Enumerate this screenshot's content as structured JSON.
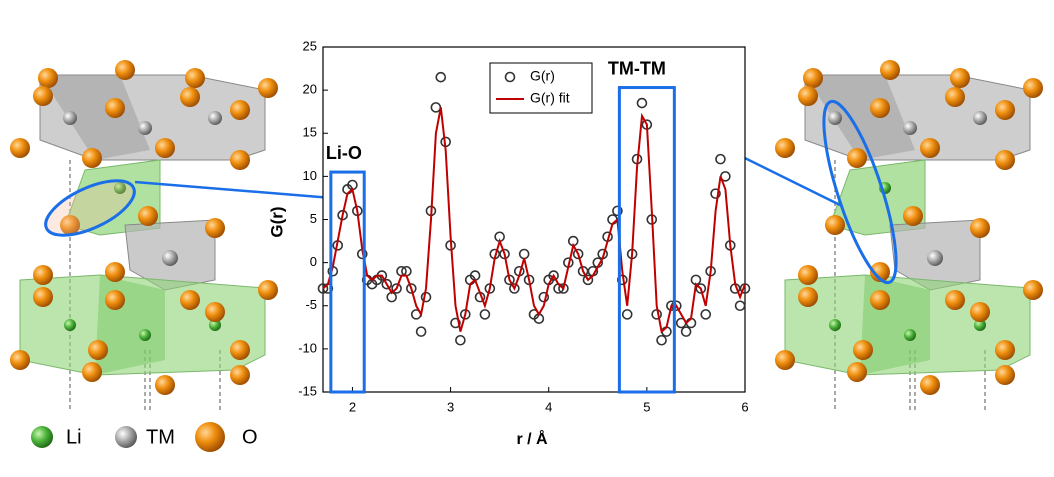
{
  "chart_data": {
    "type": "scatter",
    "xlabel": "r / Å",
    "ylabel": "G(r)",
    "xlim": [
      1.7,
      6.0
    ],
    "xticks": [
      2,
      3,
      4,
      5,
      6
    ],
    "ylim": [
      -15,
      25
    ],
    "yticks": [
      -15,
      -10,
      -5,
      0,
      5,
      10,
      15,
      20,
      25
    ],
    "x": [
      1.7,
      1.75,
      1.8,
      1.85,
      1.9,
      1.95,
      2.0,
      2.05,
      2.1,
      2.15,
      2.2,
      2.25,
      2.3,
      2.35,
      2.4,
      2.45,
      2.5,
      2.55,
      2.6,
      2.65,
      2.7,
      2.75,
      2.8,
      2.85,
      2.9,
      2.95,
      3.0,
      3.05,
      3.1,
      3.15,
      3.2,
      3.25,
      3.3,
      3.35,
      3.4,
      3.45,
      3.5,
      3.55,
      3.6,
      3.65,
      3.7,
      3.75,
      3.8,
      3.85,
      3.9,
      3.95,
      4.0,
      4.05,
      4.1,
      4.15,
      4.2,
      4.25,
      4.3,
      4.35,
      4.4,
      4.45,
      4.5,
      4.55,
      4.6,
      4.65,
      4.7,
      4.75,
      4.8,
      4.85,
      4.9,
      4.95,
      5.0,
      5.05,
      5.1,
      5.15,
      5.2,
      5.25,
      5.3,
      5.35,
      5.4,
      5.45,
      5.5,
      5.55,
      5.6,
      5.65,
      5.7,
      5.75,
      5.8,
      5.85,
      5.9,
      5.95,
      6.0
    ],
    "series": [
      {
        "name": "G(r)",
        "color": "#333333",
        "values": [
          -3,
          -3,
          -1,
          2,
          5.5,
          8.5,
          9,
          6,
          1,
          -2,
          -2.5,
          -2,
          -1.5,
          -2.5,
          -4,
          -3,
          -1,
          -1,
          -3,
          -6,
          -8,
          -4,
          6,
          18,
          21.5,
          14,
          2,
          -7,
          -9,
          -6,
          -2,
          -1.5,
          -4,
          -6,
          -3,
          1,
          3,
          1,
          -2,
          -3,
          -1,
          1,
          -2,
          -6,
          -6.5,
          -4,
          -2,
          -1.5,
          -3,
          -3,
          0,
          2.5,
          1,
          -1,
          -2,
          -1,
          0,
          1,
          3,
          5,
          6,
          -2,
          -6,
          1,
          12,
          18.5,
          16,
          5,
          -6,
          -9,
          -8,
          -5,
          -5,
          -7,
          -8,
          -7,
          -2,
          -3,
          -6,
          -1,
          8,
          12,
          10,
          2,
          -3,
          -5,
          -3
        ]
      },
      {
        "name": "G(r) fit",
        "color": "#c00000",
        "values": [
          -3,
          -2.5,
          -0.5,
          2.5,
          5.5,
          8,
          8.5,
          6,
          1.5,
          -1.5,
          -2,
          -1.5,
          -1.5,
          -2.5,
          -3.5,
          -3,
          -1.5,
          -1.5,
          -3,
          -5,
          -6,
          -3,
          5,
          15,
          18,
          13,
          3,
          -5,
          -8,
          -6,
          -2.5,
          -2,
          -3.5,
          -5,
          -3,
          0.5,
          2.5,
          1,
          -2,
          -3,
          -1.5,
          0.5,
          -2,
          -5,
          -6,
          -5,
          -2.5,
          -1.5,
          -2.5,
          -3,
          -0.5,
          2,
          1,
          -1,
          -2,
          -1.5,
          -0.5,
          0.5,
          2.5,
          4.5,
          5,
          -1,
          -5,
          1,
          11,
          17,
          16,
          6,
          -5,
          -8,
          -7.5,
          -5,
          -5,
          -6,
          -7,
          -6.5,
          -2.5,
          -3,
          -5,
          -1,
          6,
          10,
          8.5,
          2,
          -2.5,
          -4,
          -2.5
        ]
      }
    ],
    "annotations": [
      {
        "text": "Li-O",
        "x": [
          1.78,
          2.12
        ],
        "y": [
          -15,
          10.5
        ]
      },
      {
        "text": "TM-TM",
        "x": [
          4.72,
          5.28
        ],
        "y": [
          -15,
          20.3
        ]
      }
    ]
  },
  "atom_legend": [
    "Li",
    "TM",
    "O"
  ]
}
